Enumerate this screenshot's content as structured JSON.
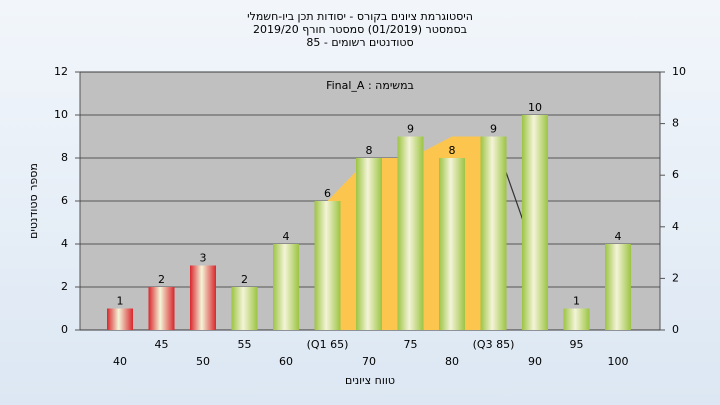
{
  "chart_data": {
    "type": "bar",
    "title": [
      "היסטוגרמת ציונים בקורס - יסודות תכן ביו-חשמלי",
      "בסמסטר (01/2019)  סמסטר חורף 2019/20",
      "סטודנטים רשומים - 85"
    ],
    "annotation": "Final_A : במשימה",
    "y_label": "מספר סטודנטים",
    "x_label": "טווח ציונים",
    "categories": [
      "40",
      "45",
      "50",
      "55",
      "60",
      "(Q1 65)",
      "70",
      "75",
      "80",
      "(Q3 85)",
      "90",
      "95",
      "100"
    ],
    "values": [
      1,
      2,
      3,
      2,
      4,
      6,
      8,
      9,
      8,
      9,
      10,
      1,
      4
    ],
    "colors": [
      "#d8262c",
      "#d8262c",
      "#d8262c",
      "#9cc443",
      "#9cc443",
      "#9cc443",
      "#9cc443",
      "#9cc443",
      "#9cc443",
      "#9cc443",
      "#9cc443",
      "#9cc443",
      "#9cc443"
    ],
    "area": {
      "color": "#fcc64e",
      "values": [
        null,
        null,
        null,
        null,
        null,
        6,
        8,
        8,
        9,
        9,
        null,
        null,
        null
      ]
    },
    "line": {
      "color": "#333333",
      "values": [
        null,
        null,
        null,
        null,
        null,
        null,
        null,
        null,
        null,
        9,
        3.5,
        null,
        null
      ]
    },
    "ylim": [
      0,
      12
    ],
    "yticks": [
      0,
      2,
      4,
      6,
      8,
      10,
      12
    ],
    "y2lim": [
      0,
      10
    ],
    "y2ticks": [
      0,
      2,
      4,
      6,
      8,
      10
    ],
    "grid": true
  }
}
